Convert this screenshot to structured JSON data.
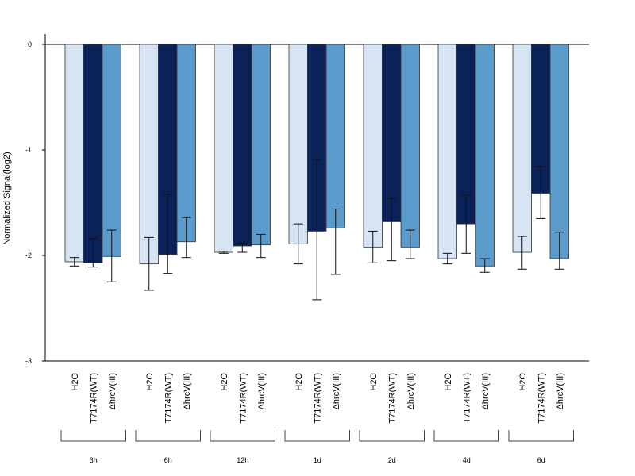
{
  "chart_data": {
    "type": "bar",
    "title": "",
    "xlabel": "",
    "ylabel": "Normalized Signal(log2)",
    "ylim": [
      -3,
      0
    ],
    "yticks": [
      "0",
      "-1",
      "-2",
      "-3"
    ],
    "grid": false,
    "groups": [
      "3h",
      "6h",
      "12h",
      "1d",
      "2d",
      "4d",
      "6d"
    ],
    "series": [
      {
        "name": "H2O",
        "color": "#d6e4f3",
        "values": [
          -2.06,
          -2.08,
          -1.97,
          -1.89,
          -1.92,
          -2.03,
          -1.97
        ],
        "err_low": [
          -2.1,
          -2.33,
          -1.98,
          -2.08,
          -2.07,
          -2.08,
          -2.13
        ],
        "err_high": [
          -2.02,
          -1.83,
          -1.96,
          -1.7,
          -1.77,
          -1.98,
          -1.82
        ]
      },
      {
        "name": "T7174R(WT)",
        "color": "#0a2258",
        "values": [
          -2.07,
          -1.99,
          -1.91,
          -1.77,
          -1.68,
          -1.7,
          -1.41
        ],
        "err_low": [
          -2.11,
          -2.17,
          -1.97,
          -2.42,
          -2.05,
          -1.98,
          -1.65
        ],
        "err_high": [
          -1.84,
          -1.42,
          -1.88,
          -1.09,
          -1.46,
          -1.43,
          -1.16
        ]
      },
      {
        "name": "ΔhrcV(III)",
        "color": "#5b9bcb",
        "values": [
          -2.01,
          -1.87,
          -1.9,
          -1.74,
          -1.92,
          -2.1,
          -2.03
        ],
        "err_low": [
          -2.25,
          -2.02,
          -2.02,
          -2.18,
          -2.03,
          -2.16,
          -2.13
        ],
        "err_high": [
          -1.76,
          -1.64,
          -1.8,
          -1.56,
          -1.76,
          -2.03,
          -1.78
        ]
      }
    ],
    "category_labels": [
      "H2O",
      "T7174R(WT)",
      "ΔhrcV(III)"
    ]
  }
}
